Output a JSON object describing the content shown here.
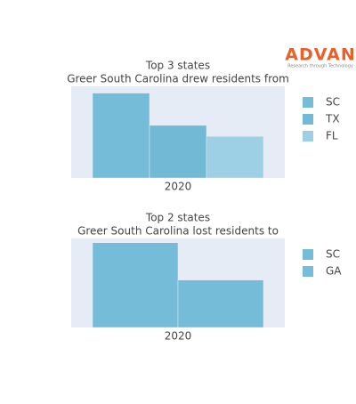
{
  "logo": {
    "name": "ADVAN",
    "tagline": "Research through Technology"
  },
  "chart_data": [
    {
      "type": "bar",
      "title": "Top 3 states",
      "subtitle": "Greer South Carolina drew residents from",
      "categories": [
        "2020"
      ],
      "ylim": [
        0,
        108
      ],
      "series": [
        {
          "name": "SC",
          "color": "#74bcd8",
          "values": [
            100
          ]
        },
        {
          "name": "TX",
          "color": "#72b9d6",
          "values": [
            62
          ]
        },
        {
          "name": "FL",
          "color": "#9dd0e4",
          "values": [
            49
          ]
        }
      ]
    },
    {
      "type": "bar",
      "title": "Top 2 states",
      "subtitle": "Greer South Carolina lost residents to",
      "categories": [
        "2020"
      ],
      "ylim": [
        0,
        105
      ],
      "series": [
        {
          "name": "SC",
          "color": "#74bcd8",
          "values": [
            100
          ]
        },
        {
          "name": "GA",
          "color": "#74bcd8",
          "values": [
            56
          ]
        }
      ]
    }
  ]
}
